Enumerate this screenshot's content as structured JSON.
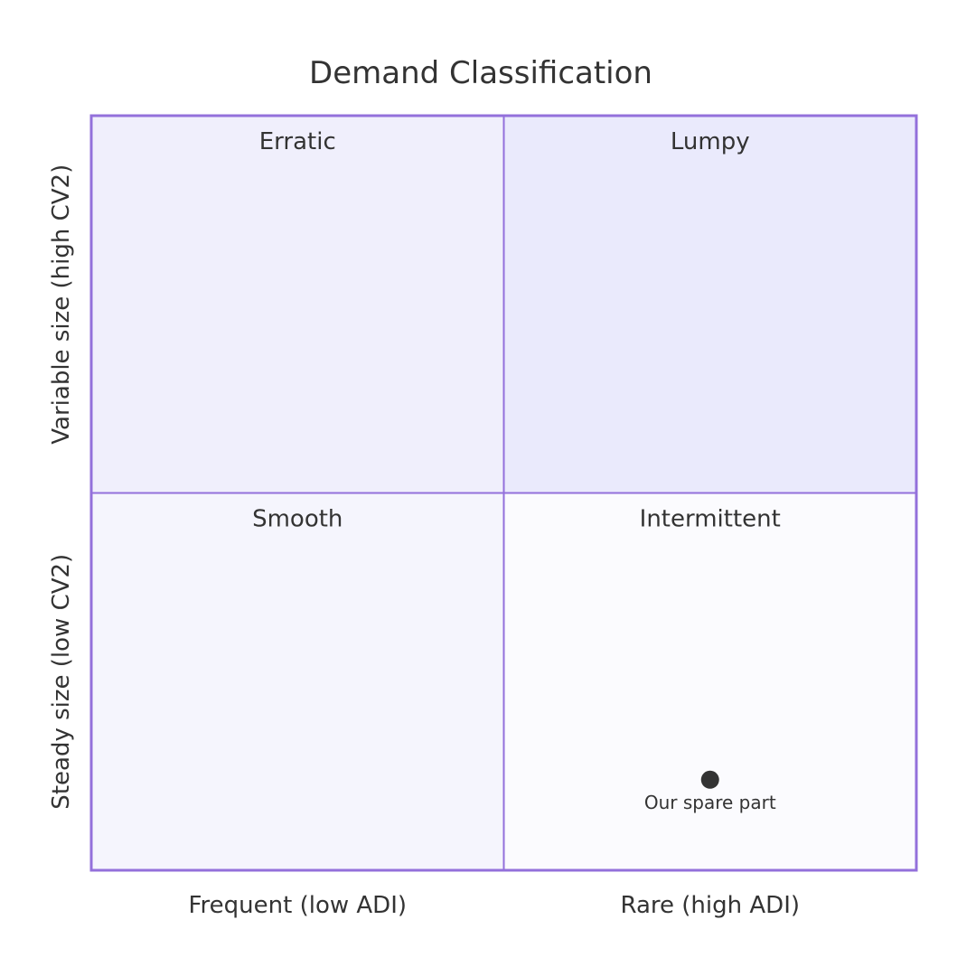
{
  "chart_data": {
    "type": "quadrant",
    "title": "Demand Classification",
    "x_axis": {
      "low_label": "Frequent (low ADI)",
      "high_label": "Rare (high ADI)"
    },
    "y_axis": {
      "low_label": "Steady size (low CV2)",
      "high_label": "Variable size (high CV2)"
    },
    "quadrants": {
      "top_left": {
        "label": "Erratic",
        "fill": "#f0effc"
      },
      "top_right": {
        "label": "Lumpy",
        "fill": "#eaeafc"
      },
      "bottom_left": {
        "label": "Smooth",
        "fill": "#f5f5fd"
      },
      "bottom_right": {
        "label": "Intermittent",
        "fill": "#fbfbfe"
      }
    },
    "points": [
      {
        "label": "Our spare part",
        "x": 0.75,
        "y": 0.12
      }
    ],
    "border_color": "#9370db",
    "point_color": "#333333"
  }
}
